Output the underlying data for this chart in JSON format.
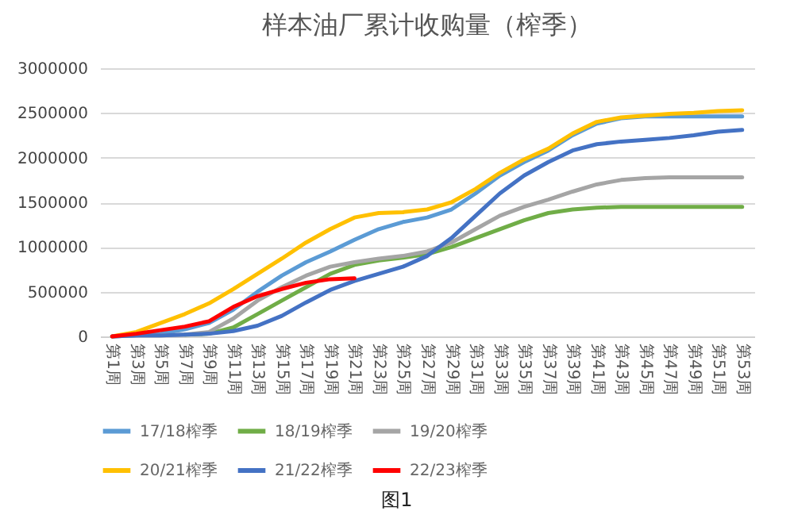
{
  "chart_data": {
    "type": "line",
    "title": "样本油厂累计收购量（榨季）",
    "categories": [
      "第1周",
      "第3周",
      "第5周",
      "第7周",
      "第9周",
      "第11周",
      "第13周",
      "第15周",
      "第17周",
      "第19周",
      "第21周",
      "第23周",
      "第25周",
      "第27周",
      "第29周",
      "第31周",
      "第33周",
      "第35周",
      "第37周",
      "第39周",
      "第41周",
      "第43周",
      "第45周",
      "第47周",
      "第49周",
      "第51周",
      "第53周"
    ],
    "series": [
      {
        "name": "17/18榨季",
        "color": "#5b9bd5",
        "values": [
          0,
          10000,
          30000,
          80000,
          150000,
          300000,
          500000,
          680000,
          830000,
          950000,
          1080000,
          1200000,
          1280000,
          1330000,
          1420000,
          1600000,
          1800000,
          1950000,
          2080000,
          2250000,
          2380000,
          2440000,
          2460000,
          2460000,
          2460000,
          2460000,
          2460000
        ]
      },
      {
        "name": "18/19榨季",
        "color": "#70ad47",
        "values": [
          null,
          null,
          null,
          20000,
          30000,
          100000,
          250000,
          400000,
          550000,
          700000,
          800000,
          850000,
          880000,
          920000,
          1000000,
          1100000,
          1200000,
          1300000,
          1380000,
          1420000,
          1440000,
          1450000,
          1450000,
          1450000,
          1450000,
          1450000,
          1450000
        ]
      },
      {
        "name": "19/20榨季",
        "color": "#a5a5a5",
        "values": [
          0,
          10000,
          10000,
          20000,
          50000,
          200000,
          400000,
          550000,
          680000,
          780000,
          830000,
          870000,
          900000,
          950000,
          1050000,
          1200000,
          1350000,
          1450000,
          1530000,
          1620000,
          1700000,
          1750000,
          1770000,
          1780000,
          1780000,
          1780000,
          1780000
        ]
      },
      {
        "name": "20/21榨季",
        "color": "#ffc000",
        "values": [
          0,
          50000,
          150000,
          250000,
          370000,
          530000,
          700000,
          870000,
          1050000,
          1200000,
          1330000,
          1380000,
          1390000,
          1420000,
          1500000,
          1650000,
          1830000,
          1980000,
          2100000,
          2270000,
          2400000,
          2450000,
          2470000,
          2490000,
          2500000,
          2520000,
          2530000
        ]
      },
      {
        "name": "21/22榨季",
        "color": "#4472c4",
        "values": [
          0,
          10000,
          10000,
          20000,
          30000,
          60000,
          120000,
          230000,
          380000,
          520000,
          620000,
          700000,
          780000,
          900000,
          1100000,
          1350000,
          1600000,
          1800000,
          1950000,
          2080000,
          2150000,
          2180000,
          2200000,
          2220000,
          2250000,
          2290000,
          2310000
        ]
      },
      {
        "name": "22/23榨季",
        "color": "#ff0000",
        "values": [
          0,
          30000,
          70000,
          110000,
          170000,
          330000,
          450000,
          530000,
          600000,
          640000,
          650000,
          null,
          null,
          null,
          null,
          null,
          null,
          null,
          null,
          null,
          null,
          null,
          null,
          null,
          null,
          null,
          null
        ]
      }
    ],
    "ylim": [
      0,
      3000000
    ],
    "yticks": [
      0,
      500000,
      1000000,
      1500000,
      2000000,
      2500000,
      3000000
    ],
    "grid": "y",
    "legend": "bottom",
    "marker": "none",
    "line_style": "solid",
    "annotations": [
      "图1"
    ]
  }
}
